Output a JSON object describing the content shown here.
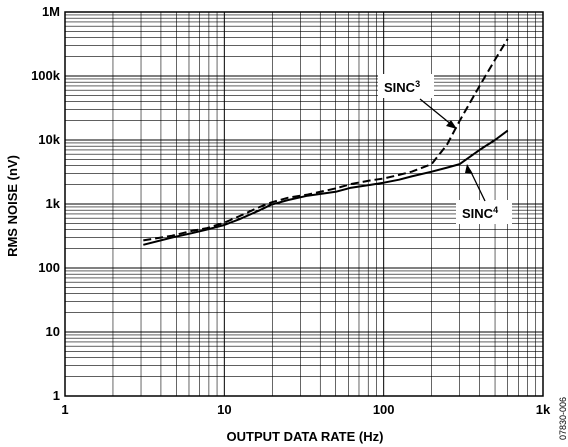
{
  "chart_data": {
    "type": "line",
    "x_scale": "log",
    "y_scale": "log",
    "xlim": [
      1,
      1000
    ],
    "ylim": [
      1,
      1000000
    ],
    "xlabel": "OUTPUT DATA RATE (Hz)",
    "ylabel": "RMS NOISE (nV)",
    "x_ticks": [
      {
        "value": 1,
        "label": "1"
      },
      {
        "value": 10,
        "label": "10"
      },
      {
        "value": 100,
        "label": "100"
      },
      {
        "value": 1000,
        "label": "1k"
      }
    ],
    "y_ticks": [
      {
        "value": 1,
        "label": "1"
      },
      {
        "value": 10,
        "label": "10"
      },
      {
        "value": 100,
        "label": "100"
      },
      {
        "value": 1000,
        "label": "1k"
      },
      {
        "value": 10000,
        "label": "10k"
      },
      {
        "value": 100000,
        "label": "100k"
      },
      {
        "value": 1000000,
        "label": "1M"
      }
    ],
    "grid": true,
    "series": [
      {
        "name": "SINC3",
        "line_style": "dashed",
        "color": "#000000",
        "x": [
          3.1,
          4.7,
          6.25,
          7.8,
          10,
          12.5,
          16.7,
          19.6,
          25,
          33.3,
          50,
          62.5,
          83.3,
          100,
          125,
          150,
          200,
          250,
          300,
          400,
          500,
          600
        ],
        "y": [
          270,
          320,
          380,
          420,
          510,
          650,
          900,
          1050,
          1250,
          1400,
          1750,
          2050,
          2350,
          2500,
          2850,
          3200,
          4200,
          8500,
          20000,
          70000,
          180000,
          380000
        ]
      },
      {
        "name": "SINC4",
        "line_style": "solid",
        "color": "#000000",
        "x": [
          3.1,
          4.7,
          6.25,
          7.8,
          10,
          12.5,
          16.7,
          19.6,
          25,
          33.3,
          50,
          62.5,
          83.3,
          100,
          125,
          150,
          200,
          250,
          300,
          400,
          500,
          600
        ],
        "y": [
          230,
          300,
          350,
          400,
          470,
          580,
          800,
          970,
          1150,
          1350,
          1550,
          1800,
          2000,
          2150,
          2400,
          2700,
          3200,
          3700,
          4200,
          7000,
          10000,
          14000
        ]
      }
    ],
    "annotations": [
      {
        "text": "SINC",
        "superscript": "3",
        "points_to_series": "SINC3"
      },
      {
        "text": "SINC",
        "superscript": "4",
        "points_to_series": "SINC4"
      }
    ]
  },
  "figure_id": "07830-006"
}
